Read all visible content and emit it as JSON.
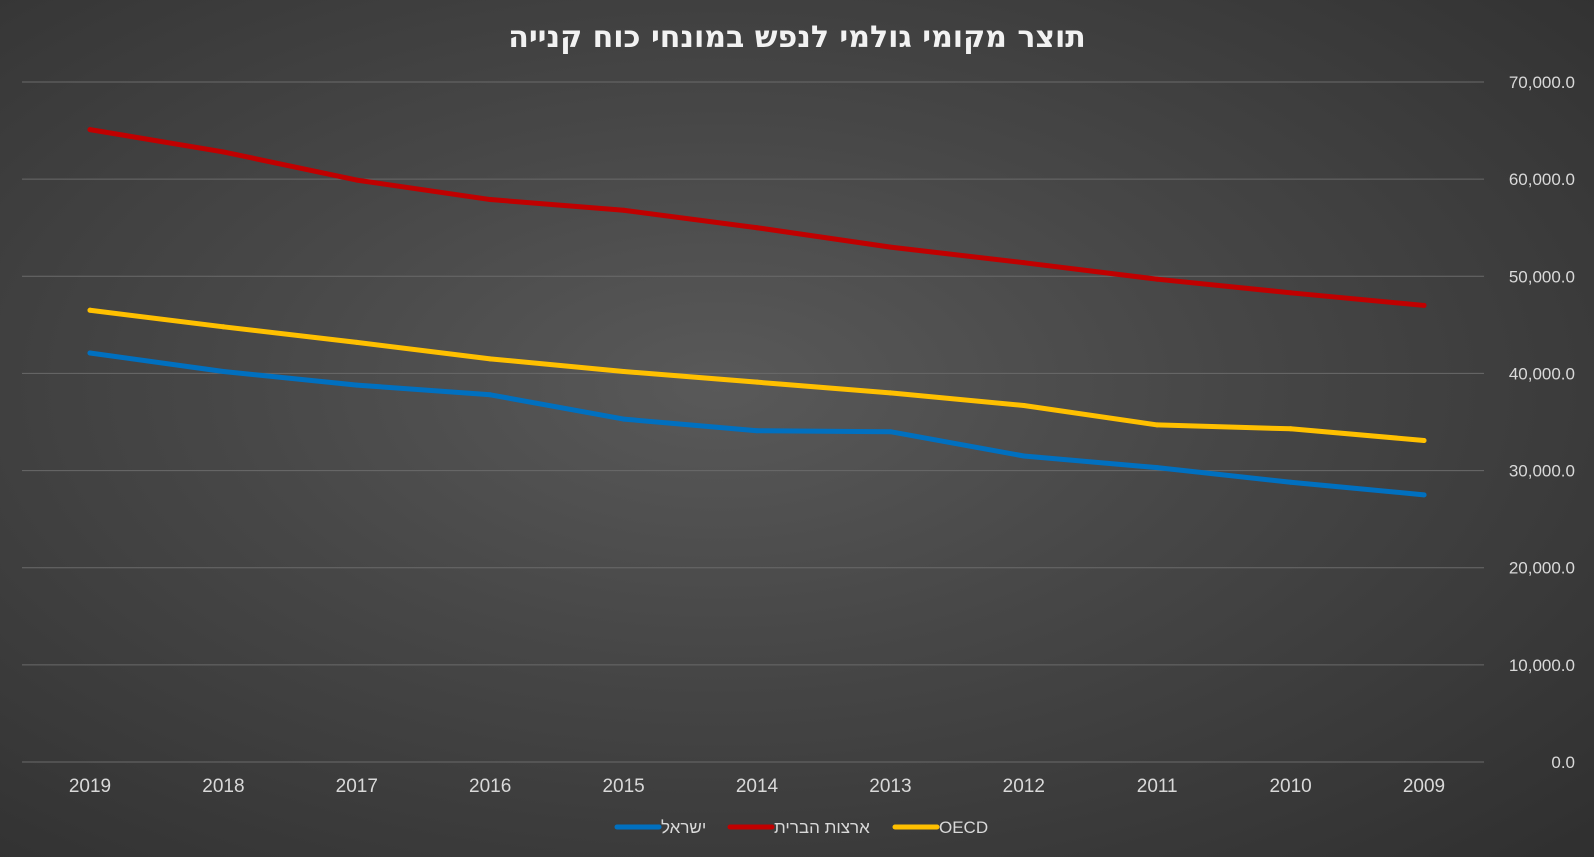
{
  "chart_data": {
    "type": "line",
    "title": "תוצר מקומי גולמי לנפש במונחי כוח קנייה",
    "x": [
      "2019",
      "2018",
      "2017",
      "2016",
      "2015",
      "2014",
      "2013",
      "2012",
      "2011",
      "2010",
      "2009"
    ],
    "ylim": [
      0,
      70000
    ],
    "ytick_labels": [
      "0.0",
      "10,000.0",
      "20,000.0",
      "30,000.0",
      "40,000.0",
      "50,000.0",
      "60,000.0",
      "70,000.0"
    ],
    "grid": true,
    "legend_position": "bottom",
    "series": [
      {
        "name": "ישראל",
        "color": "#0070c0",
        "values": [
          42100,
          40200,
          38800,
          37800,
          35300,
          34100,
          34000,
          31500,
          30300,
          28800,
          27500
        ]
      },
      {
        "name": "ארצות הברית",
        "color": "#c00000",
        "values": [
          65100,
          62800,
          59900,
          57900,
          56800,
          55000,
          53000,
          51400,
          49700,
          48300,
          47000
        ]
      },
      {
        "name": "OECD",
        "color": "#ffc000",
        "values": [
          46500,
          44800,
          43200,
          41500,
          40200,
          39100,
          38000,
          36700,
          34700,
          34300,
          33100
        ]
      }
    ]
  }
}
